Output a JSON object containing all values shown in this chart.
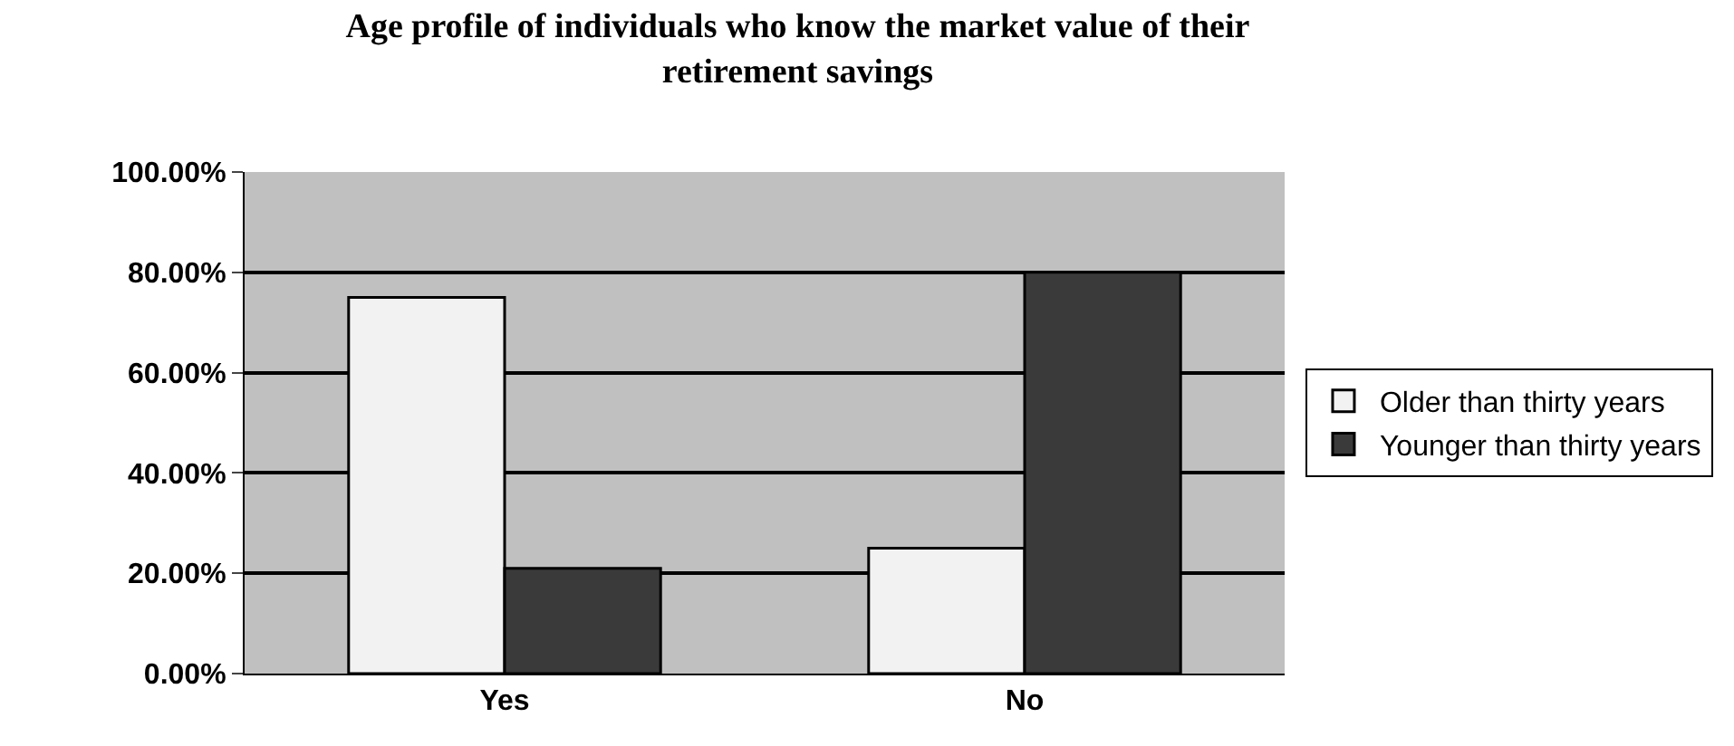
{
  "chart_data": {
    "type": "bar",
    "title": "Age profile of individuals who know the market value of their\nretirement savings",
    "categories": [
      "Yes",
      "No"
    ],
    "series": [
      {
        "name": "Older than thirty years",
        "color": "#f2f2f2",
        "values": [
          75,
          25
        ]
      },
      {
        "name": "Younger than thirty years",
        "color": "#3a3a3a",
        "values": [
          21,
          80
        ]
      }
    ],
    "ylim": [
      0,
      100
    ],
    "yticks": [
      {
        "value": 0,
        "label": "0.00%"
      },
      {
        "value": 20,
        "label": "20.00%"
      },
      {
        "value": 40,
        "label": "40.00%"
      },
      {
        "value": 60,
        "label": "60.00%"
      },
      {
        "value": 80,
        "label": "80.00%"
      },
      {
        "value": 100,
        "label": "100.00%"
      }
    ],
    "grid": "y",
    "legend": "right"
  }
}
